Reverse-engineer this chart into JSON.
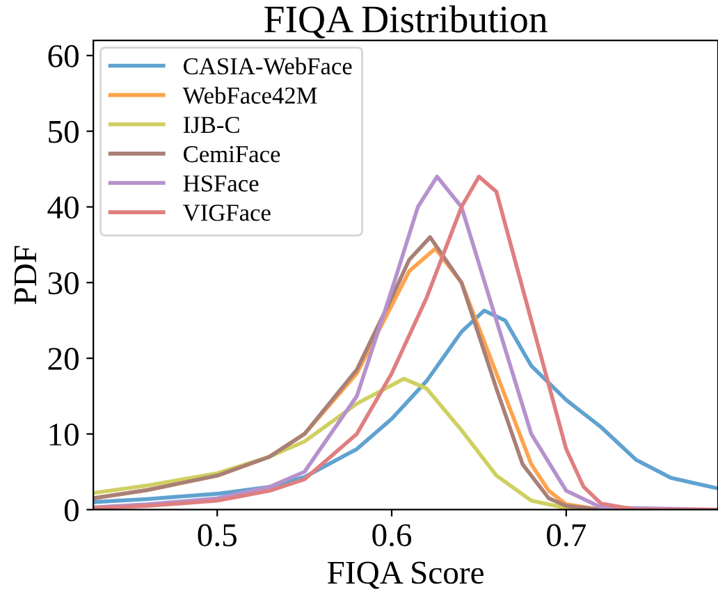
{
  "chart_data": {
    "type": "line",
    "title": "FIQA Distribution",
    "xlabel": "FIQA Score",
    "ylabel": "PDF",
    "xlim": [
      0.429,
      0.787
    ],
    "ylim": [
      0,
      62
    ],
    "xticks": [
      0.5,
      0.6,
      0.7
    ],
    "yticks": [
      0,
      10,
      20,
      30,
      40,
      50,
      60
    ],
    "grid": false,
    "legend": "top left",
    "series": [
      {
        "name": "CASIA-WebFace",
        "color": "#5fa2d0",
        "x": [
          0.429,
          0.46,
          0.5,
          0.53,
          0.55,
          0.58,
          0.6,
          0.62,
          0.64,
          0.653,
          0.665,
          0.68,
          0.7,
          0.72,
          0.74,
          0.76,
          0.787
        ],
        "values": [
          1.0,
          1.4,
          2.1,
          3.0,
          4.3,
          8.0,
          12.0,
          17.0,
          23.5,
          26.3,
          25.0,
          19.0,
          14.5,
          10.9,
          6.6,
          4.2,
          2.8
        ]
      },
      {
        "name": "WebFace42M",
        "color": "#ffa34d",
        "x": [
          0.429,
          0.46,
          0.5,
          0.53,
          0.55,
          0.58,
          0.6,
          0.61,
          0.625,
          0.64,
          0.66,
          0.68,
          0.69,
          0.7,
          0.72,
          0.787
        ],
        "values": [
          1.5,
          2.6,
          4.5,
          7.0,
          10.0,
          18.0,
          27.0,
          31.5,
          34.5,
          30.0,
          18.0,
          6.0,
          2.5,
          0.7,
          0.0,
          0.0
        ]
      },
      {
        "name": "IJB-C",
        "color": "#cfd062",
        "x": [
          0.429,
          0.46,
          0.5,
          0.53,
          0.55,
          0.58,
          0.607,
          0.62,
          0.64,
          0.66,
          0.68,
          0.7,
          0.72,
          0.787
        ],
        "values": [
          2.2,
          3.2,
          4.8,
          7.0,
          9.0,
          14.0,
          17.3,
          16.0,
          10.5,
          4.5,
          1.2,
          0.2,
          0.0,
          0.0
        ]
      },
      {
        "name": "CemiFace",
        "color": "#a98077",
        "x": [
          0.429,
          0.46,
          0.5,
          0.53,
          0.55,
          0.58,
          0.6,
          0.61,
          0.622,
          0.64,
          0.66,
          0.675,
          0.69,
          0.7,
          0.72,
          0.787
        ],
        "values": [
          1.5,
          2.6,
          4.5,
          7.0,
          10.0,
          18.5,
          28.0,
          33.0,
          36.0,
          30.0,
          16.0,
          6.0,
          1.5,
          0.5,
          0.0,
          0.0
        ]
      },
      {
        "name": "HSFace",
        "color": "#b592cd",
        "x": [
          0.429,
          0.46,
          0.5,
          0.53,
          0.55,
          0.58,
          0.6,
          0.615,
          0.626,
          0.64,
          0.66,
          0.68,
          0.7,
          0.72,
          0.787
        ],
        "values": [
          0.3,
          0.7,
          1.5,
          3.0,
          5.0,
          15.0,
          29.0,
          40.0,
          44.0,
          40.0,
          25.0,
          10.0,
          2.5,
          0.3,
          0.0
        ]
      },
      {
        "name": "VIGFace",
        "color": "#df7f80",
        "x": [
          0.429,
          0.46,
          0.5,
          0.53,
          0.55,
          0.58,
          0.6,
          0.62,
          0.64,
          0.65,
          0.66,
          0.68,
          0.7,
          0.71,
          0.72,
          0.74,
          0.787
        ],
        "values": [
          0.2,
          0.5,
          1.2,
          2.5,
          4.0,
          10.0,
          18.0,
          28.0,
          40.0,
          44.0,
          42.0,
          25.0,
          8.0,
          3.0,
          0.8,
          0.0,
          0.0
        ]
      }
    ]
  }
}
